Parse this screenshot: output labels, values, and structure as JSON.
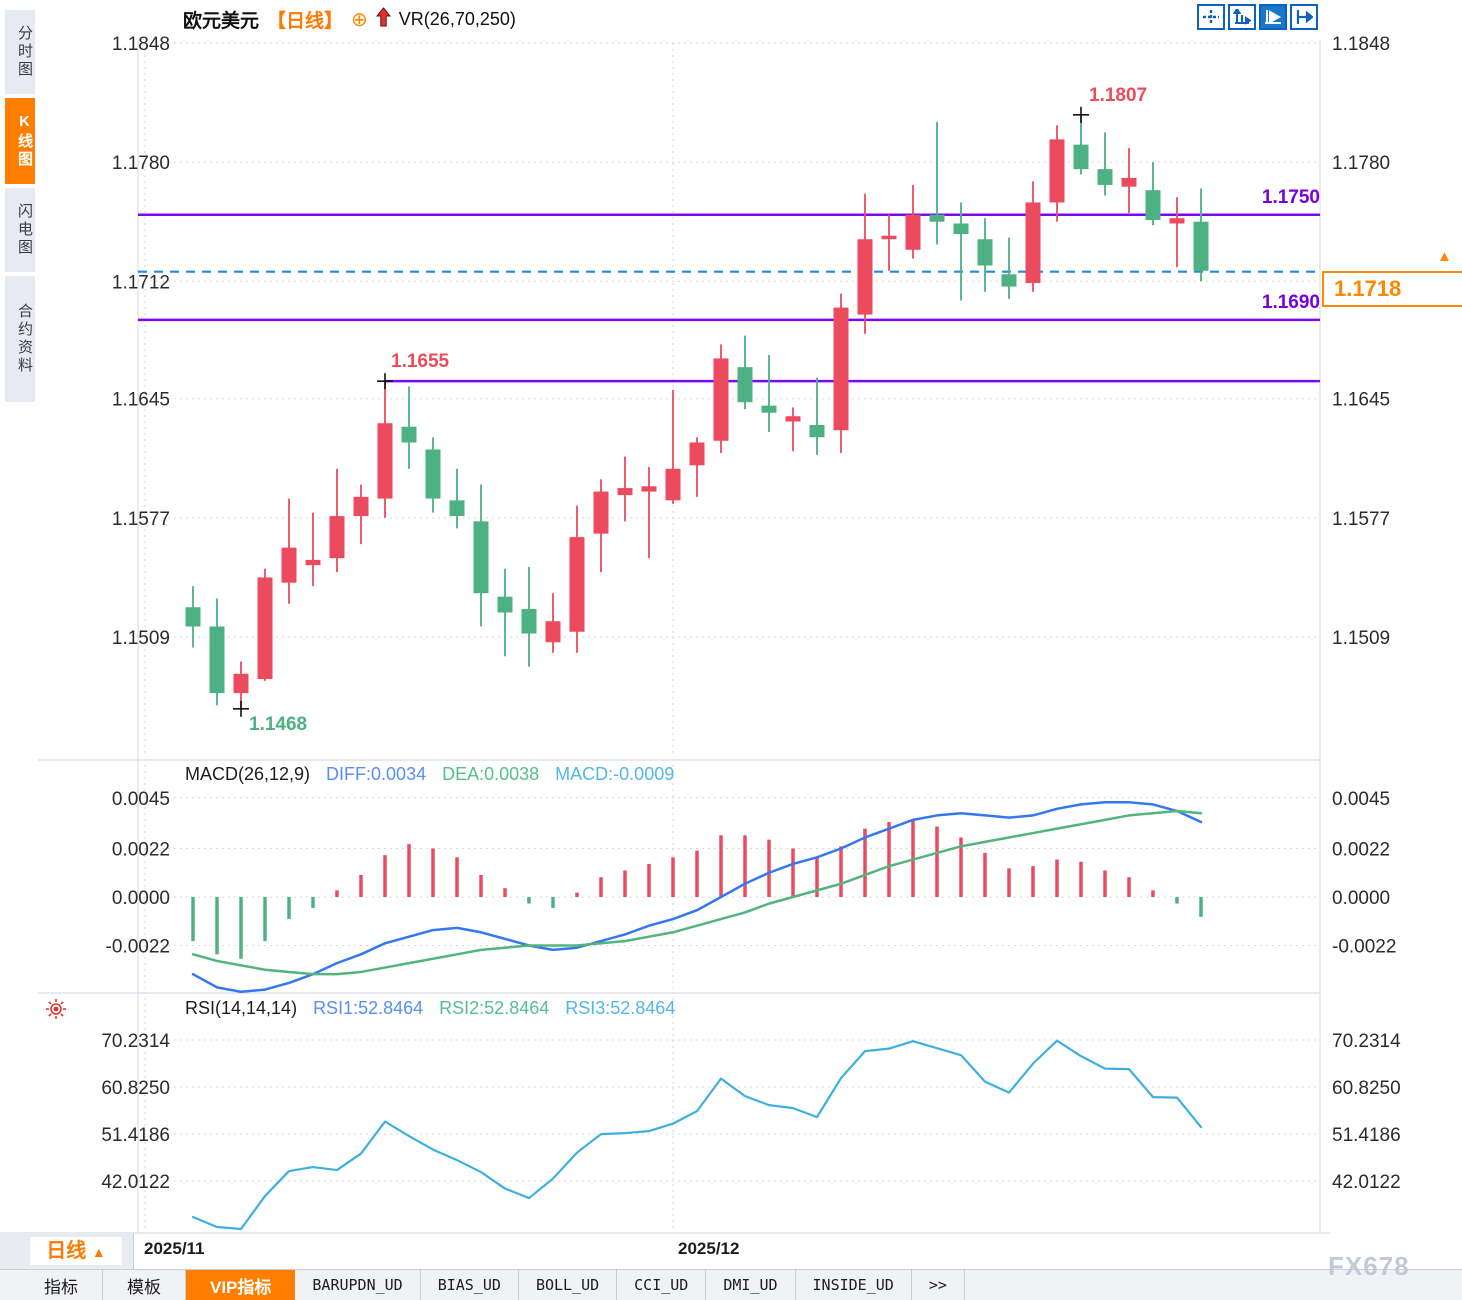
{
  "sidebar": {
    "tabs": [
      {
        "label": "分时图",
        "active": false
      },
      {
        "label": "K线图",
        "active": true
      },
      {
        "label": "闪电图",
        "active": false
      },
      {
        "label": "合约资料",
        "active": false
      }
    ]
  },
  "header": {
    "symbol": "欧元美元",
    "period_tag": "【日线】",
    "add_icon_glyph": "⊕",
    "indicator": "VR(26,70,250)"
  },
  "toolbar": {
    "icons": [
      "pan-crosshair-icon",
      "axis-scale-icon",
      "axis-play-icon",
      "axis-shift-icon"
    ],
    "active_icon": "axis-play-icon"
  },
  "macd_header": {
    "name": "MACD(26,12,9)",
    "diff": "DIFF:0.0034",
    "dea": "DEA:0.0038",
    "macd": "MACD:-0.0009"
  },
  "rsi_header": {
    "name": "RSI(14,14,14)",
    "rsi1": "RSI1:52.8464",
    "rsi2": "RSI2:52.8464",
    "rsi3": "RSI3:52.8464"
  },
  "bottom": {
    "period_label": "日线",
    "period_arrow": "▲",
    "tabs": [
      {
        "label": "指标",
        "active": false,
        "mono": false
      },
      {
        "label": "模板",
        "active": false,
        "mono": false
      },
      {
        "label": "VIP指标",
        "active": true,
        "mono": false
      },
      {
        "label": "BARUPDN_UD",
        "active": false,
        "mono": true
      },
      {
        "label": "BIAS_UD",
        "active": false,
        "mono": true
      },
      {
        "label": "BOLL_UD",
        "active": false,
        "mono": true
      },
      {
        "label": "CCI_UD",
        "active": false,
        "mono": true
      },
      {
        "label": "DMI_UD",
        "active": false,
        "mono": true
      },
      {
        "label": "INSIDE_UD",
        "active": false,
        "mono": true
      },
      {
        "label": ">>",
        "active": false,
        "mono": true
      }
    ]
  },
  "watermark": "FX678",
  "price_box": {
    "value": "1.1718",
    "arrow": "▲"
  },
  "colors": {
    "up": "#ec4b5f",
    "down": "#4db183",
    "purple_line": "#7c08f2",
    "dashed_blue": "#1f88ec",
    "orange": "#ff8800",
    "diff_line": "#3478f0",
    "dea_line": "#53b47e",
    "rsi_line": "#3fafe0",
    "grid": "#d9d9e2",
    "axis_text": "#2b2b2b"
  },
  "chart_data": [
    {
      "type": "candlestick",
      "title": "EUR/USD daily (欧元美元 日线)",
      "convention": "red=up, green=down",
      "y_ticks": [
        1.1848,
        1.178,
        1.1712,
        1.1645,
        1.1577,
        1.1509
      ],
      "ylim": [
        1.1455,
        1.1848
      ],
      "x_ticks": [
        {
          "label": "2025/11",
          "candle_index": -2
        },
        {
          "label": "2025/12",
          "candle_index": 20
        }
      ],
      "candles_ohlc": [
        [
          1.1526,
          1.1538,
          1.1503,
          1.1515
        ],
        [
          1.1515,
          1.1531,
          1.147,
          1.1477
        ],
        [
          1.1477,
          1.1495,
          1.1468,
          1.1488
        ],
        [
          1.1485,
          1.1548,
          1.1484,
          1.1543
        ],
        [
          1.154,
          1.1588,
          1.1528,
          1.156
        ],
        [
          1.155,
          1.158,
          1.1538,
          1.1553
        ],
        [
          1.1554,
          1.1605,
          1.1546,
          1.1578
        ],
        [
          1.1578,
          1.1596,
          1.1562,
          1.1589
        ],
        [
          1.1588,
          1.1655,
          1.1577,
          1.1631
        ],
        [
          1.1629,
          1.1652,
          1.1605,
          1.162
        ],
        [
          1.1616,
          1.1623,
          1.158,
          1.1588
        ],
        [
          1.1587,
          1.1605,
          1.1571,
          1.1578
        ],
        [
          1.1575,
          1.1596,
          1.1515,
          1.1534
        ],
        [
          1.1532,
          1.1548,
          1.1498,
          1.1523
        ],
        [
          1.1525,
          1.1549,
          1.1492,
          1.1511
        ],
        [
          1.1506,
          1.1534,
          1.15,
          1.1518
        ],
        [
          1.1512,
          1.1584,
          1.15,
          1.1566
        ],
        [
          1.1568,
          1.1599,
          1.1546,
          1.1592
        ],
        [
          1.159,
          1.1612,
          1.1575,
          1.1594
        ],
        [
          1.1592,
          1.1606,
          1.1554,
          1.1595
        ],
        [
          1.1587,
          1.165,
          1.1585,
          1.1605
        ],
        [
          1.1607,
          1.1623,
          1.1589,
          1.162
        ],
        [
          1.1621,
          1.1676,
          1.1614,
          1.1668
        ],
        [
          1.1663,
          1.1681,
          1.1639,
          1.1643
        ],
        [
          1.1641,
          1.167,
          1.1626,
          1.1637
        ],
        [
          1.1632,
          1.164,
          1.1615,
          1.1635
        ],
        [
          1.163,
          1.1657,
          1.1613,
          1.1623
        ],
        [
          1.1627,
          1.1705,
          1.1614,
          1.1697
        ],
        [
          1.1693,
          1.1762,
          1.1682,
          1.1736
        ],
        [
          1.1736,
          1.175,
          1.1718,
          1.1738
        ],
        [
          1.173,
          1.1767,
          1.1725,
          1.175
        ],
        [
          1.175,
          1.1803,
          1.1733,
          1.1746
        ],
        [
          1.1745,
          1.1757,
          1.1701,
          1.1739
        ],
        [
          1.1736,
          1.1748,
          1.1706,
          1.1721
        ],
        [
          1.1716,
          1.1737,
          1.1702,
          1.1709
        ],
        [
          1.1711,
          1.1769,
          1.1706,
          1.1757
        ],
        [
          1.1757,
          1.1801,
          1.1746,
          1.1793
        ],
        [
          1.179,
          1.1807,
          1.1773,
          1.1776
        ],
        [
          1.1776,
          1.1797,
          1.1761,
          1.1767
        ],
        [
          1.1766,
          1.1788,
          1.1751,
          1.1771
        ],
        [
          1.1764,
          1.178,
          1.1744,
          1.1747
        ],
        [
          1.1745,
          1.176,
          1.172,
          1.1748
        ],
        [
          1.1746,
          1.1765,
          1.1712,
          1.1718
        ]
      ],
      "levels": [
        {
          "label": "1.1750",
          "price": 1.175,
          "from_index": null
        },
        {
          "label": "1.1690",
          "price": 1.169,
          "from_index": null
        },
        {
          "label": null,
          "price": 1.1655,
          "from_index": 8
        }
      ],
      "last_price": 1.17175,
      "last_price_label": "1.1718",
      "annotations": [
        {
          "text": "1.1807",
          "price": 1.1807,
          "candle_index": 37,
          "placement": "high"
        },
        {
          "text": "1.1655",
          "price": 1.1655,
          "candle_index": 8,
          "placement": "high"
        },
        {
          "text": "1.1468",
          "price": 1.1468,
          "candle_index": 2,
          "placement": "low"
        }
      ]
    },
    {
      "type": "bar",
      "name": "MACD",
      "params": [
        26,
        12,
        9
      ],
      "y_ticks": [
        0.0045,
        0.0022,
        0.0,
        -0.0022
      ],
      "histogram": [
        -0.002,
        -0.0026,
        -0.0028,
        -0.002,
        -0.001,
        -0.0005,
        0.0003,
        0.001,
        0.0019,
        0.0024,
        0.0022,
        0.0018,
        0.001,
        0.0004,
        -0.0003,
        -0.0005,
        0.0002,
        0.0009,
        0.0012,
        0.0015,
        0.0018,
        0.0021,
        0.0028,
        0.0028,
        0.0026,
        0.0022,
        0.0018,
        0.0023,
        0.0031,
        0.0034,
        0.0035,
        0.0032,
        0.0027,
        0.002,
        0.0013,
        0.0014,
        0.0017,
        0.0016,
        0.0012,
        0.0009,
        0.0003,
        -0.0003,
        -0.0009
      ],
      "series": [
        {
          "name": "DIFF",
          "values": [
            -0.0035,
            -0.0041,
            -0.0043,
            -0.0042,
            -0.0039,
            -0.0035,
            -0.003,
            -0.0026,
            -0.0021,
            -0.0018,
            -0.0015,
            -0.0014,
            -0.0016,
            -0.0019,
            -0.0022,
            -0.0024,
            -0.0023,
            -0.002,
            -0.0017,
            -0.0013,
            -0.001,
            -0.0006,
            0.0,
            0.0006,
            0.0011,
            0.0015,
            0.0018,
            0.0022,
            0.0027,
            0.0031,
            0.0035,
            0.0037,
            0.0038,
            0.0037,
            0.0036,
            0.0037,
            0.004,
            0.0042,
            0.0043,
            0.0043,
            0.0042,
            0.0039,
            0.0034
          ]
        },
        {
          "name": "DEA",
          "values": [
            -0.0026,
            -0.0029,
            -0.0031,
            -0.0033,
            -0.0034,
            -0.0035,
            -0.0035,
            -0.0034,
            -0.0032,
            -0.003,
            -0.0028,
            -0.0026,
            -0.0024,
            -0.0023,
            -0.0022,
            -0.0022,
            -0.0022,
            -0.0021,
            -0.002,
            -0.0018,
            -0.0016,
            -0.0013,
            -0.001,
            -0.0007,
            -0.0003,
            0.0,
            0.0003,
            0.0006,
            0.001,
            0.0014,
            0.0017,
            0.002,
            0.0023,
            0.0025,
            0.0027,
            0.0029,
            0.0031,
            0.0033,
            0.0035,
            0.0037,
            0.0038,
            0.0039,
            0.0038
          ]
        }
      ]
    },
    {
      "type": "line",
      "name": "RSI",
      "params": [
        14,
        14,
        14
      ],
      "y_ticks": [
        70.2314,
        60.825,
        51.4186,
        42.0122
      ],
      "values": [
        34.8,
        32.8,
        32.4,
        39.0,
        44.0,
        44.8,
        44.2,
        47.5,
        53.9,
        51.0,
        48.3,
        46.2,
        43.8,
        40.5,
        38.6,
        42.5,
        47.7,
        51.4,
        51.6,
        52.0,
        53.5,
        56.0,
        62.5,
        59.0,
        57.2,
        56.6,
        54.8,
        62.6,
        68.0,
        68.5,
        70.0,
        68.6,
        67.2,
        61.9,
        59.7,
        65.5,
        70.1,
        67.0,
        64.5,
        64.4,
        58.8,
        58.7,
        52.8
      ]
    }
  ]
}
